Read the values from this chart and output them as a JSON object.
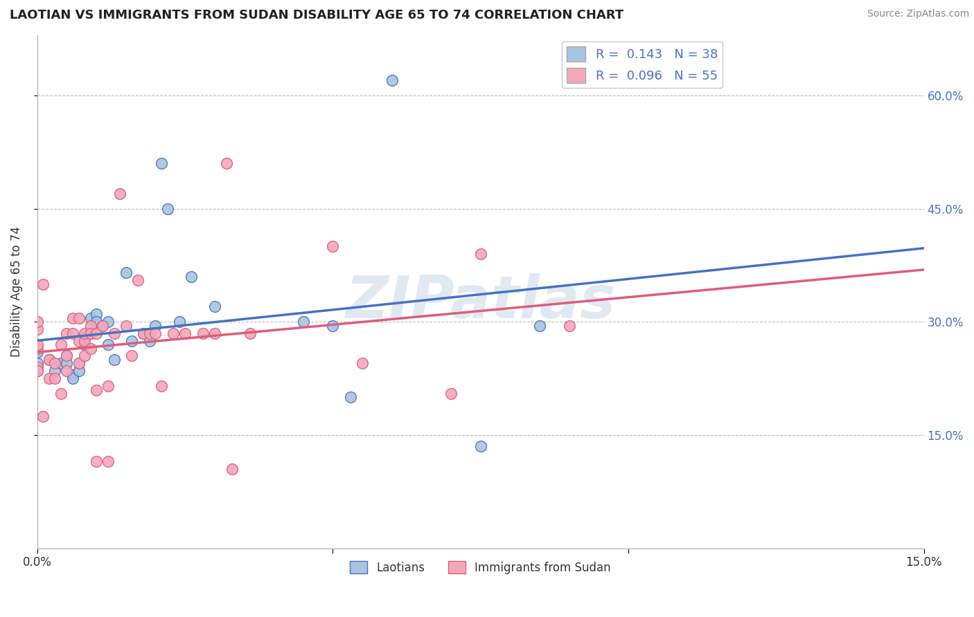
{
  "title": "LAOTIAN VS IMMIGRANTS FROM SUDAN DISABILITY AGE 65 TO 74 CORRELATION CHART",
  "source": "Source: ZipAtlas.com",
  "ylabel": "Disability Age 65 to 74",
  "xlabel_laotian": "Laotians",
  "xlabel_sudan": "Immigrants from Sudan",
  "xmin": 0.0,
  "xmax": 0.15,
  "ymin": 0.0,
  "ymax": 0.68,
  "xticks": [
    0.0,
    0.05,
    0.1,
    0.15
  ],
  "xtick_labels": [
    "0.0%",
    "",
    "",
    "15.0%"
  ],
  "yticks": [
    0.15,
    0.3,
    0.45,
    0.6
  ],
  "ytick_labels": [
    "15.0%",
    "30.0%",
    "45.0%",
    "60.0%"
  ],
  "laotian_color": "#a8c4e0",
  "sudan_color": "#f4a7b9",
  "laotian_line_color": "#4472c4",
  "sudan_line_color": "#e05c7a",
  "laotian_R": 0.143,
  "laotian_N": 38,
  "sudan_R": 0.096,
  "sudan_N": 55,
  "laotian_scatter": [
    [
      0.0,
      0.245
    ],
    [
      0.0,
      0.26
    ],
    [
      0.0,
      0.235
    ],
    [
      0.002,
      0.25
    ],
    [
      0.003,
      0.235
    ],
    [
      0.004,
      0.245
    ],
    [
      0.005,
      0.255
    ],
    [
      0.005,
      0.245
    ],
    [
      0.006,
      0.23
    ],
    [
      0.006,
      0.225
    ],
    [
      0.007,
      0.235
    ],
    [
      0.007,
      0.245
    ],
    [
      0.008,
      0.28
    ],
    [
      0.008,
      0.27
    ],
    [
      0.009,
      0.285
    ],
    [
      0.009,
      0.305
    ],
    [
      0.01,
      0.31
    ],
    [
      0.01,
      0.3
    ],
    [
      0.011,
      0.295
    ],
    [
      0.012,
      0.3
    ],
    [
      0.012,
      0.27
    ],
    [
      0.013,
      0.25
    ],
    [
      0.015,
      0.365
    ],
    [
      0.016,
      0.275
    ],
    [
      0.018,
      0.285
    ],
    [
      0.019,
      0.275
    ],
    [
      0.02,
      0.295
    ],
    [
      0.021,
      0.51
    ],
    [
      0.022,
      0.45
    ],
    [
      0.024,
      0.3
    ],
    [
      0.026,
      0.36
    ],
    [
      0.03,
      0.32
    ],
    [
      0.045,
      0.3
    ],
    [
      0.05,
      0.295
    ],
    [
      0.053,
      0.2
    ],
    [
      0.06,
      0.62
    ],
    [
      0.075,
      0.135
    ],
    [
      0.085,
      0.295
    ]
  ],
  "sudan_scatter": [
    [
      0.0,
      0.24
    ],
    [
      0.0,
      0.265
    ],
    [
      0.0,
      0.29
    ],
    [
      0.0,
      0.3
    ],
    [
      0.0,
      0.27
    ],
    [
      0.0,
      0.235
    ],
    [
      0.001,
      0.175
    ],
    [
      0.001,
      0.35
    ],
    [
      0.002,
      0.25
    ],
    [
      0.002,
      0.225
    ],
    [
      0.003,
      0.225
    ],
    [
      0.003,
      0.245
    ],
    [
      0.004,
      0.27
    ],
    [
      0.004,
      0.205
    ],
    [
      0.005,
      0.235
    ],
    [
      0.005,
      0.255
    ],
    [
      0.005,
      0.285
    ],
    [
      0.006,
      0.305
    ],
    [
      0.006,
      0.285
    ],
    [
      0.007,
      0.305
    ],
    [
      0.007,
      0.245
    ],
    [
      0.007,
      0.275
    ],
    [
      0.008,
      0.275
    ],
    [
      0.008,
      0.285
    ],
    [
      0.008,
      0.255
    ],
    [
      0.009,
      0.265
    ],
    [
      0.009,
      0.295
    ],
    [
      0.009,
      0.285
    ],
    [
      0.01,
      0.285
    ],
    [
      0.01,
      0.21
    ],
    [
      0.01,
      0.115
    ],
    [
      0.011,
      0.295
    ],
    [
      0.012,
      0.215
    ],
    [
      0.012,
      0.115
    ],
    [
      0.013,
      0.285
    ],
    [
      0.014,
      0.47
    ],
    [
      0.015,
      0.295
    ],
    [
      0.016,
      0.255
    ],
    [
      0.017,
      0.355
    ],
    [
      0.018,
      0.285
    ],
    [
      0.019,
      0.285
    ],
    [
      0.02,
      0.285
    ],
    [
      0.021,
      0.215
    ],
    [
      0.023,
      0.285
    ],
    [
      0.025,
      0.285
    ],
    [
      0.028,
      0.285
    ],
    [
      0.03,
      0.285
    ],
    [
      0.032,
      0.51
    ],
    [
      0.033,
      0.105
    ],
    [
      0.036,
      0.285
    ],
    [
      0.05,
      0.4
    ],
    [
      0.055,
      0.245
    ],
    [
      0.07,
      0.205
    ],
    [
      0.075,
      0.39
    ],
    [
      0.09,
      0.295
    ]
  ]
}
